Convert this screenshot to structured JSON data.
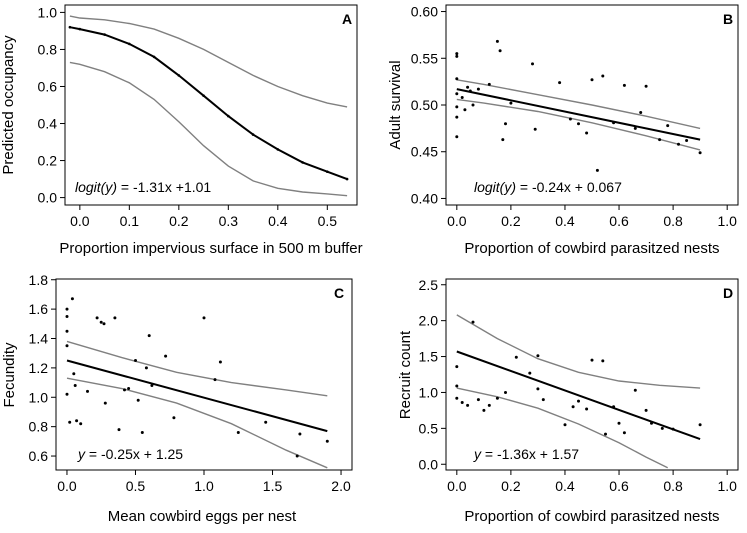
{
  "colors": {
    "fit": "#000000",
    "ci": "#808080",
    "points": "#000000",
    "frame": "#000000"
  },
  "chart_data": [
    {
      "panel_label": "A",
      "type": "line",
      "xlabel": "Proportion impervious surface in 500 m buffer",
      "ylabel": "Predicted occupancy",
      "xlim": [
        -0.03,
        0.56
      ],
      "ylim": [
        -0.04,
        1.04
      ],
      "xticks": [
        0.0,
        0.1,
        0.2,
        0.3,
        0.4,
        0.5
      ],
      "xtick_labels": [
        "0.0",
        "0.1",
        "0.2",
        "0.3",
        "0.4",
        "0.5"
      ],
      "yticks": [
        0.0,
        0.2,
        0.4,
        0.6,
        0.8,
        1.0
      ],
      "ytick_labels": [
        "0.0",
        "0.2",
        "0.4",
        "0.6",
        "0.8",
        "1.0"
      ],
      "equation": {
        "prefix": "logit(y)",
        "rest": " = -1.31x +1.01"
      },
      "series": [
        {
          "name": "fit",
          "x": [
            -0.02,
            0.0,
            0.05,
            0.1,
            0.15,
            0.2,
            0.25,
            0.3,
            0.35,
            0.4,
            0.45,
            0.5,
            0.54
          ],
          "y": [
            0.92,
            0.91,
            0.88,
            0.83,
            0.76,
            0.66,
            0.55,
            0.44,
            0.34,
            0.26,
            0.19,
            0.14,
            0.1
          ]
        },
        {
          "name": "upper CI",
          "x": [
            -0.02,
            0.0,
            0.05,
            0.1,
            0.15,
            0.2,
            0.25,
            0.3,
            0.35,
            0.4,
            0.45,
            0.5,
            0.54
          ],
          "y": [
            0.98,
            0.97,
            0.96,
            0.94,
            0.91,
            0.86,
            0.8,
            0.73,
            0.66,
            0.6,
            0.55,
            0.51,
            0.49
          ]
        },
        {
          "name": "lower CI",
          "x": [
            -0.02,
            0.0,
            0.05,
            0.1,
            0.15,
            0.2,
            0.25,
            0.3,
            0.35,
            0.4,
            0.45,
            0.5,
            0.54
          ],
          "y": [
            0.73,
            0.72,
            0.68,
            0.62,
            0.53,
            0.41,
            0.28,
            0.17,
            0.09,
            0.05,
            0.03,
            0.02,
            0.01
          ]
        }
      ],
      "points": []
    },
    {
      "panel_label": "B",
      "type": "scatter",
      "xlabel": "Proportion of cowbird parasitzed nests",
      "ylabel": "Adult survival",
      "xlim": [
        -0.04,
        1.04
      ],
      "ylim": [
        0.393,
        0.607
      ],
      "xticks": [
        0.0,
        0.2,
        0.4,
        0.6,
        0.8,
        1.0
      ],
      "xtick_labels": [
        "0.0",
        "0.2",
        "0.4",
        "0.6",
        "0.8",
        "1.0"
      ],
      "yticks": [
        0.4,
        0.45,
        0.5,
        0.55,
        0.6
      ],
      "ytick_labels": [
        "0.40",
        "0.45",
        "0.50",
        "0.55",
        "0.60"
      ],
      "equation": {
        "prefix": "logit(y)",
        "rest": " = -0.24x + 0.067"
      },
      "series": [
        {
          "name": "fit",
          "x": [
            0.0,
            0.9
          ],
          "y": [
            0.517,
            0.463
          ]
        },
        {
          "name": "upper CI",
          "x": [
            0.0,
            0.1,
            0.3,
            0.5,
            0.7,
            0.9
          ],
          "y": [
            0.527,
            0.522,
            0.511,
            0.5,
            0.488,
            0.475
          ]
        },
        {
          "name": "lower CI",
          "x": [
            0.0,
            0.1,
            0.3,
            0.5,
            0.7,
            0.9
          ],
          "y": [
            0.506,
            0.502,
            0.493,
            0.481,
            0.467,
            0.452
          ]
        }
      ],
      "points": [
        {
          "x": 0.0,
          "y": 0.555
        },
        {
          "x": 0.0,
          "y": 0.552
        },
        {
          "x": 0.0,
          "y": 0.528
        },
        {
          "x": 0.0,
          "y": 0.512
        },
        {
          "x": 0.0,
          "y": 0.498
        },
        {
          "x": 0.0,
          "y": 0.487
        },
        {
          "x": 0.0,
          "y": 0.466
        },
        {
          "x": 0.02,
          "y": 0.508
        },
        {
          "x": 0.03,
          "y": 0.495
        },
        {
          "x": 0.04,
          "y": 0.519
        },
        {
          "x": 0.05,
          "y": 0.515
        },
        {
          "x": 0.06,
          "y": 0.5
        },
        {
          "x": 0.08,
          "y": 0.517
        },
        {
          "x": 0.12,
          "y": 0.522
        },
        {
          "x": 0.15,
          "y": 0.568
        },
        {
          "x": 0.16,
          "y": 0.558
        },
        {
          "x": 0.18,
          "y": 0.48
        },
        {
          "x": 0.17,
          "y": 0.463
        },
        {
          "x": 0.2,
          "y": 0.502
        },
        {
          "x": 0.28,
          "y": 0.544
        },
        {
          "x": 0.29,
          "y": 0.474
        },
        {
          "x": 0.38,
          "y": 0.524
        },
        {
          "x": 0.42,
          "y": 0.485
        },
        {
          "x": 0.45,
          "y": 0.48
        },
        {
          "x": 0.48,
          "y": 0.47
        },
        {
          "x": 0.5,
          "y": 0.527
        },
        {
          "x": 0.52,
          "y": 0.43
        },
        {
          "x": 0.54,
          "y": 0.531
        },
        {
          "x": 0.58,
          "y": 0.481
        },
        {
          "x": 0.62,
          "y": 0.521
        },
        {
          "x": 0.66,
          "y": 0.475
        },
        {
          "x": 0.68,
          "y": 0.492
        },
        {
          "x": 0.7,
          "y": 0.52
        },
        {
          "x": 0.75,
          "y": 0.463
        },
        {
          "x": 0.78,
          "y": 0.478
        },
        {
          "x": 0.82,
          "y": 0.458
        },
        {
          "x": 0.85,
          "y": 0.462
        },
        {
          "x": 0.9,
          "y": 0.449
        }
      ]
    },
    {
      "panel_label": "C",
      "type": "scatter",
      "xlabel": "Mean cowbird eggs per nest",
      "ylabel": "Fecundity",
      "xlim": [
        -0.08,
        2.08
      ],
      "ylim": [
        0.505,
        1.805
      ],
      "xticks": [
        0.0,
        0.5,
        1.0,
        1.5,
        2.0
      ],
      "xtick_labels": [
        "0.0",
        "0.5",
        "1.0",
        "1.5",
        "2.0"
      ],
      "yticks": [
        0.6,
        0.8,
        1.0,
        1.2,
        1.4,
        1.6,
        1.8
      ],
      "ytick_labels": [
        "0.6",
        "0.8",
        "1.0",
        "1.2",
        "1.4",
        "1.6",
        "1.8"
      ],
      "equation": {
        "prefix": "y",
        "rest": " = -0.25x + 1.25"
      },
      "series": [
        {
          "name": "fit",
          "x": [
            0.0,
            1.9
          ],
          "y": [
            1.25,
            0.77
          ]
        },
        {
          "name": "upper CI",
          "x": [
            0.0,
            0.4,
            0.8,
            1.2,
            1.6,
            1.9
          ],
          "y": [
            1.38,
            1.27,
            1.17,
            1.1,
            1.05,
            1.01
          ]
        },
        {
          "name": "lower CI",
          "x": [
            0.0,
            0.4,
            0.8,
            1.2,
            1.6,
            1.9
          ],
          "y": [
            1.13,
            1.06,
            0.96,
            0.82,
            0.64,
            0.52
          ]
        }
      ],
      "points": [
        {
          "x": 0.0,
          "y": 1.6
        },
        {
          "x": 0.0,
          "y": 1.55
        },
        {
          "x": 0.0,
          "y": 1.45
        },
        {
          "x": 0.0,
          "y": 1.35
        },
        {
          "x": 0.0,
          "y": 1.02
        },
        {
          "x": 0.02,
          "y": 0.83
        },
        {
          "x": 0.04,
          "y": 1.67
        },
        {
          "x": 0.05,
          "y": 1.16
        },
        {
          "x": 0.06,
          "y": 1.08
        },
        {
          "x": 0.07,
          "y": 0.84
        },
        {
          "x": 0.1,
          "y": 0.82
        },
        {
          "x": 0.15,
          "y": 1.04
        },
        {
          "x": 0.22,
          "y": 1.54
        },
        {
          "x": 0.25,
          "y": 1.51
        },
        {
          "x": 0.27,
          "y": 1.5
        },
        {
          "x": 0.28,
          "y": 0.96
        },
        {
          "x": 0.35,
          "y": 1.54
        },
        {
          "x": 0.38,
          "y": 0.78
        },
        {
          "x": 0.42,
          "y": 1.05
        },
        {
          "x": 0.45,
          "y": 1.06
        },
        {
          "x": 0.5,
          "y": 1.25
        },
        {
          "x": 0.52,
          "y": 0.98
        },
        {
          "x": 0.55,
          "y": 0.76
        },
        {
          "x": 0.58,
          "y": 1.2
        },
        {
          "x": 0.6,
          "y": 1.42
        },
        {
          "x": 0.62,
          "y": 1.08
        },
        {
          "x": 0.72,
          "y": 1.28
        },
        {
          "x": 0.78,
          "y": 0.86
        },
        {
          "x": 1.0,
          "y": 1.54
        },
        {
          "x": 1.08,
          "y": 1.12
        },
        {
          "x": 1.12,
          "y": 1.24
        },
        {
          "x": 1.25,
          "y": 0.76
        },
        {
          "x": 1.45,
          "y": 0.83
        },
        {
          "x": 1.68,
          "y": 0.6
        },
        {
          "x": 1.7,
          "y": 0.75
        },
        {
          "x": 1.9,
          "y": 0.7
        }
      ]
    },
    {
      "panel_label": "D",
      "type": "scatter",
      "xlabel": "Proportion of cowbird parasitzed nests",
      "ylabel": "Recruit count",
      "xlim": [
        -0.04,
        1.04
      ],
      "ylim": [
        -0.08,
        2.58
      ],
      "xticks": [
        0.0,
        0.2,
        0.4,
        0.6,
        0.8,
        1.0
      ],
      "xtick_labels": [
        "0.0",
        "0.2",
        "0.4",
        "0.6",
        "0.8",
        "1.0"
      ],
      "yticks": [
        0.0,
        0.5,
        1.0,
        1.5,
        2.0,
        2.5
      ],
      "ytick_labels": [
        "0.0",
        "0.5",
        "1.0",
        "1.5",
        "2.0",
        "2.5"
      ],
      "equation": {
        "prefix": "y",
        "rest": " = -1.36x  + 1.57"
      },
      "series": [
        {
          "name": "fit",
          "x": [
            0.0,
            0.9
          ],
          "y": [
            1.57,
            0.35
          ]
        },
        {
          "name": "upper CI",
          "x": [
            0.0,
            0.15,
            0.3,
            0.45,
            0.6,
            0.75,
            0.9
          ],
          "y": [
            2.08,
            1.75,
            1.47,
            1.28,
            1.16,
            1.1,
            1.06
          ]
        },
        {
          "name": "lower CI",
          "x": [
            0.0,
            0.15,
            0.3,
            0.45,
            0.6,
            0.7,
            0.78
          ],
          "y": [
            1.06,
            0.94,
            0.78,
            0.56,
            0.3,
            0.1,
            -0.05
          ]
        }
      ],
      "points": [
        {
          "x": 0.0,
          "y": 1.36
        },
        {
          "x": 0.0,
          "y": 1.09
        },
        {
          "x": 0.0,
          "y": 0.92
        },
        {
          "x": 0.02,
          "y": 0.86
        },
        {
          "x": 0.04,
          "y": 0.82
        },
        {
          "x": 0.06,
          "y": 1.98
        },
        {
          "x": 0.08,
          "y": 0.9
        },
        {
          "x": 0.1,
          "y": 0.75
        },
        {
          "x": 0.12,
          "y": 0.82
        },
        {
          "x": 0.15,
          "y": 0.92
        },
        {
          "x": 0.18,
          "y": 1.0
        },
        {
          "x": 0.22,
          "y": 1.49
        },
        {
          "x": 0.27,
          "y": 1.27
        },
        {
          "x": 0.3,
          "y": 1.05
        },
        {
          "x": 0.3,
          "y": 1.51
        },
        {
          "x": 0.32,
          "y": 0.9
        },
        {
          "x": 0.4,
          "y": 0.55
        },
        {
          "x": 0.43,
          "y": 0.8
        },
        {
          "x": 0.45,
          "y": 0.88
        },
        {
          "x": 0.48,
          "y": 0.77
        },
        {
          "x": 0.5,
          "y": 1.45
        },
        {
          "x": 0.54,
          "y": 1.44
        },
        {
          "x": 0.55,
          "y": 0.42
        },
        {
          "x": 0.58,
          "y": 0.8
        },
        {
          "x": 0.6,
          "y": 0.57
        },
        {
          "x": 0.62,
          "y": 0.44
        },
        {
          "x": 0.66,
          "y": 1.03
        },
        {
          "x": 0.7,
          "y": 0.75
        },
        {
          "x": 0.72,
          "y": 0.57
        },
        {
          "x": 0.76,
          "y": 0.5
        },
        {
          "x": 0.8,
          "y": 0.49
        },
        {
          "x": 0.9,
          "y": 0.55
        }
      ]
    }
  ]
}
